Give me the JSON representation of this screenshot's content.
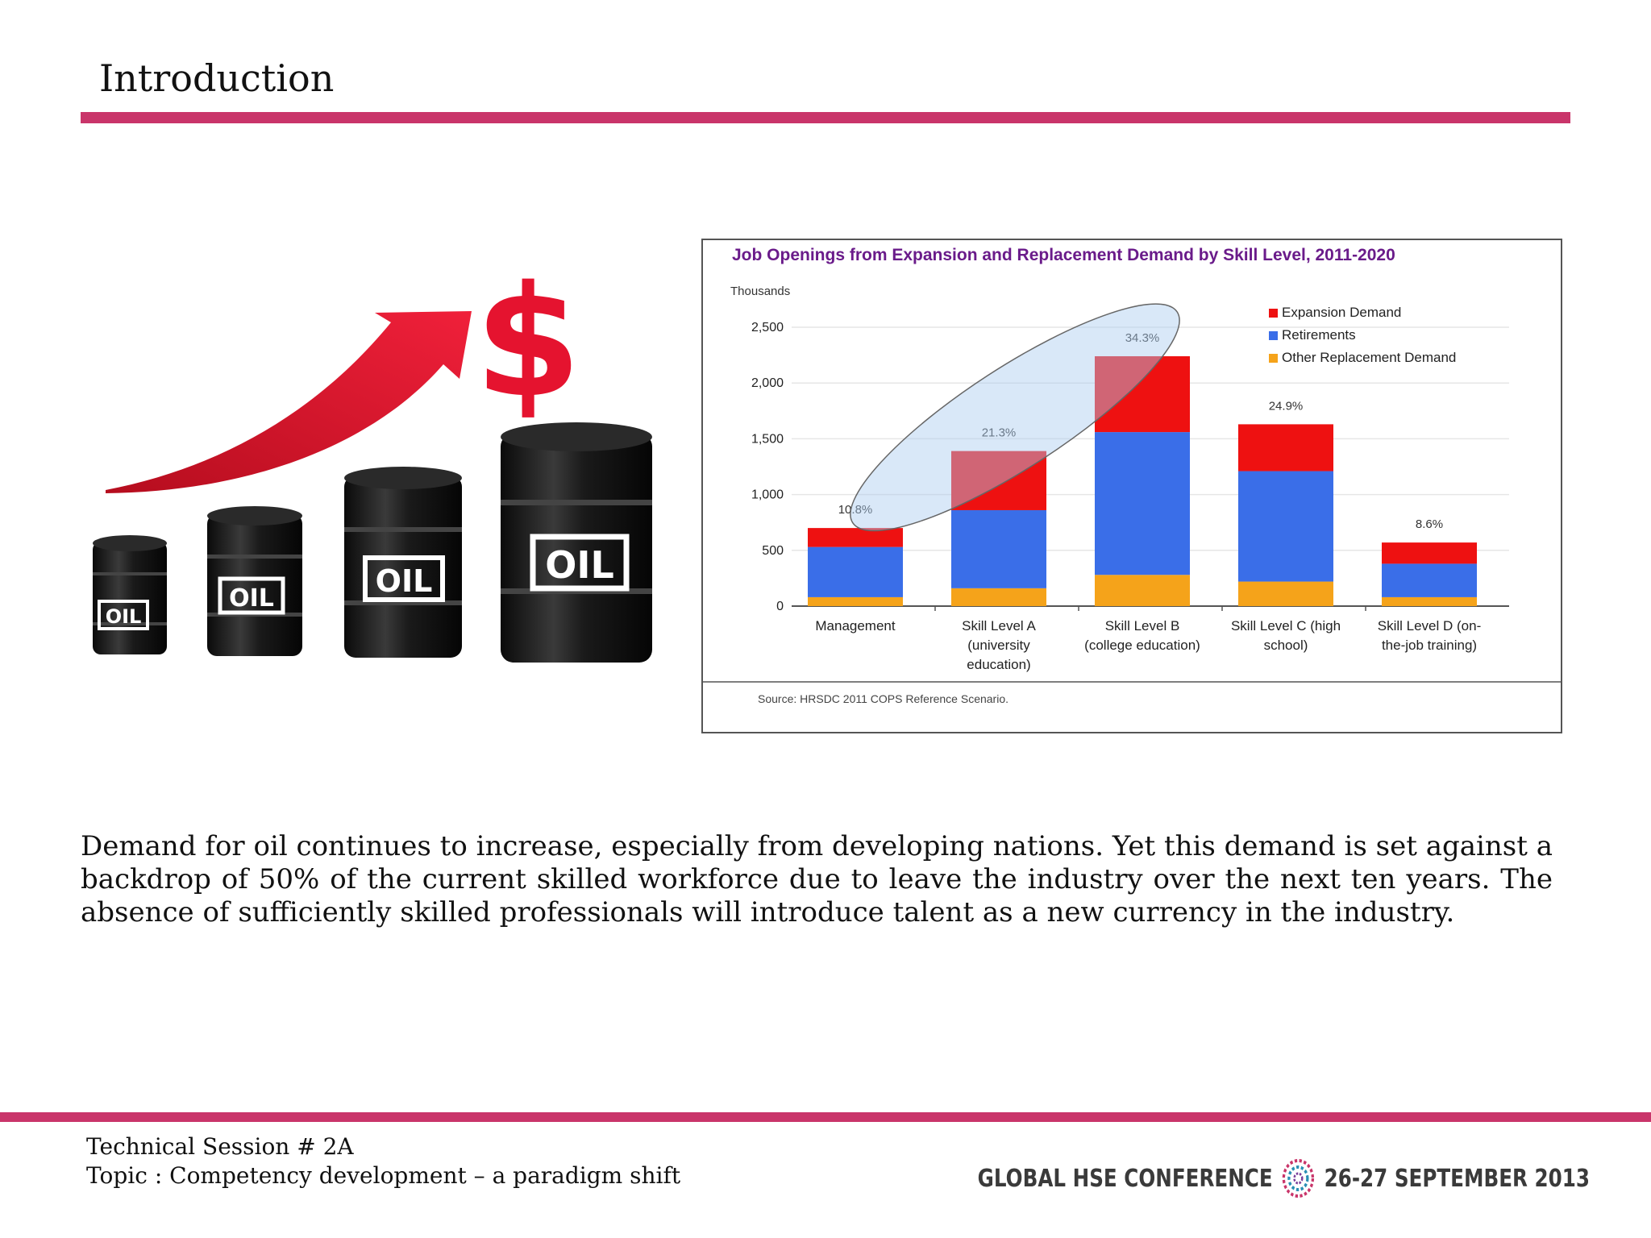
{
  "slide": {
    "title": "Introduction",
    "body": "Demand for oil continues to increase, especially from developing nations. Yet this demand is set against a backdrop of 50% of the current skilled workforce due to leave the industry over the next ten years. The absence of sufficiently skilled professionals will introduce  talent as a new currency in the industry."
  },
  "illustration": {
    "barrel_label": "OIL",
    "symbol": "$"
  },
  "chart_data": {
    "type": "bar",
    "stacked": true,
    "title": "Job Openings from Expansion and Replacement Demand by Skill Level, 2011-2020",
    "ylabel": "Thousands",
    "xlabel": "",
    "ylim": [
      0,
      2500
    ],
    "yticks": [
      "0",
      "500",
      "1,000",
      "1,500",
      "2,000",
      "2,500"
    ],
    "ytick_values": [
      0,
      500,
      1000,
      1500,
      2000,
      2500
    ],
    "categories": [
      "Management",
      "Skill Level A (university education)",
      "Skill Level B (college education)",
      "Skill Level C (high school)",
      "Skill Level D (on-the-job training)"
    ],
    "category_lines": [
      [
        "Management"
      ],
      [
        "Skill Level A",
        "(university",
        "education)"
      ],
      [
        "Skill Level B",
        "(college education)"
      ],
      [
        "Skill Level C (high",
        "school)"
      ],
      [
        "Skill Level D (on-",
        "the-job training)"
      ]
    ],
    "series": [
      {
        "name": "Other Replacement Demand",
        "color": "#f5a31a",
        "values": [
          80,
          160,
          280,
          220,
          80
        ]
      },
      {
        "name": "Retirements",
        "color": "#3a6ee8",
        "values": [
          450,
          700,
          1280,
          990,
          300
        ]
      },
      {
        "name": "Expansion Demand",
        "color": "#ee1111",
        "values": [
          170,
          530,
          680,
          420,
          190
        ]
      }
    ],
    "legend": [
      "Expansion Demand",
      "Retirements",
      "Other Replacement Demand"
    ],
    "legend_colors": [
      "#ee1111",
      "#3a6ee8",
      "#f5a31a"
    ],
    "legend_position": "top-right",
    "annotations": [
      "10.8%",
      "21.3%",
      "34.3%",
      "24.9%",
      "8.6%"
    ],
    "grid": true,
    "source": "Source: HRSDC 2011 COPS Reference Scenario."
  },
  "footer": {
    "session": "Technical Session #  2A",
    "topic": "Topic : Competency development – a paradigm  shift",
    "conference": "GLOBAL HSE CONFERENCE",
    "dates": "26-27 SEPTEMBER 2013",
    "accent": "#c9356a"
  }
}
